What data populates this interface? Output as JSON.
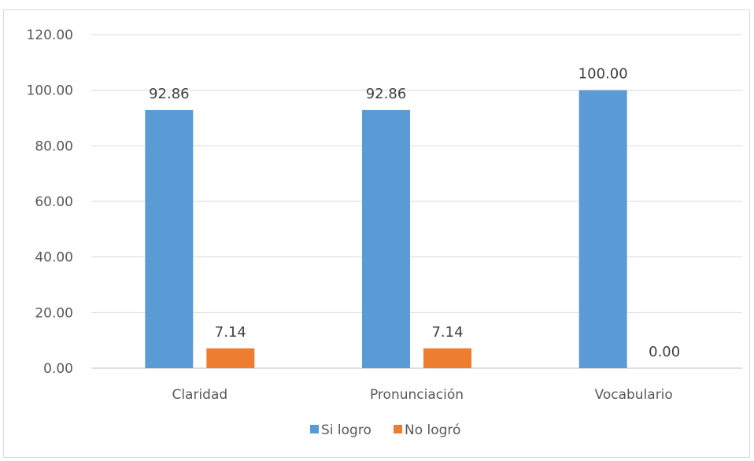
{
  "chart_data": {
    "type": "bar",
    "categories": [
      "Claridad",
      "Pronunciación",
      "Vocabulario"
    ],
    "series": [
      {
        "name": "Si logro",
        "values": [
          92.86,
          92.86,
          100.0
        ],
        "color": "#5b9bd5"
      },
      {
        "name": "No logró",
        "values": [
          7.14,
          7.14,
          0.0
        ],
        "color": "#ed7d31"
      }
    ],
    "data_labels": [
      [
        "92.86",
        "92.86",
        "100.00"
      ],
      [
        "7.14",
        "7.14",
        "0.00"
      ]
    ],
    "y_ticks": [
      "0.00",
      "20.00",
      "40.00",
      "60.00",
      "80.00",
      "100.00",
      "120.00"
    ],
    "ylim": [
      0,
      120
    ],
    "grid": true,
    "legend_position": "bottom"
  }
}
